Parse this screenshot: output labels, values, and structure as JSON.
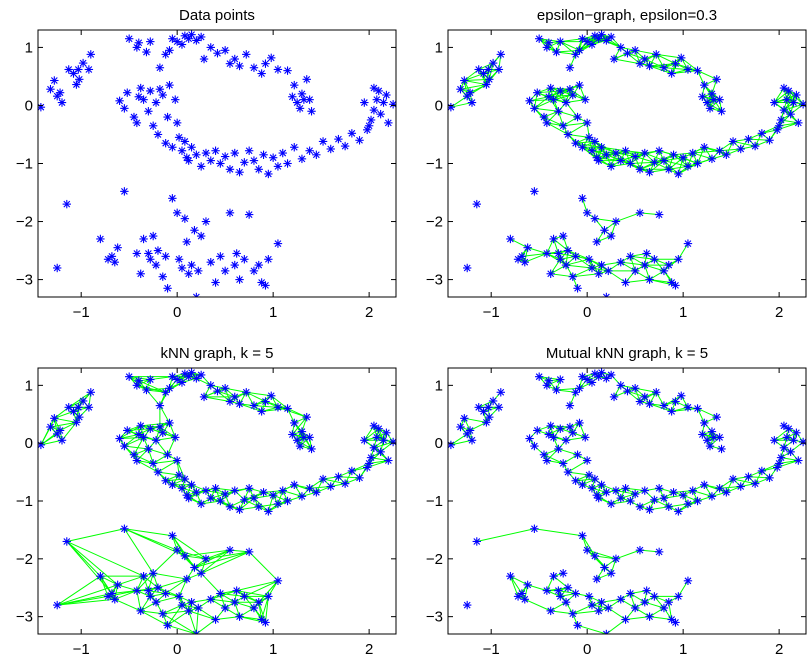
{
  "figure": {
    "background": "#ffffff",
    "point_color": "#0000ff",
    "edge_color": "#00ff00"
  },
  "chart_data": [
    {
      "type": "scatter",
      "title": "Data points",
      "xlim": [
        -1.45,
        2.28
      ],
      "ylim": [
        -3.3,
        1.3
      ],
      "xticks": [
        -1,
        0,
        1,
        2
      ],
      "yticks": [
        -3,
        -2,
        -1,
        0,
        1
      ],
      "marker": "asterisk",
      "grid": false,
      "edges": "none",
      "series": [
        {
          "points": []
        }
      ]
    },
    {
      "type": "scatter",
      "title": "epsilon−graph, epsilon=0.3",
      "xlim": [
        -1.45,
        2.28
      ],
      "ylim": [
        -3.3,
        1.3
      ],
      "xticks": [
        -1,
        0,
        1,
        2
      ],
      "yticks": [
        -3,
        -2,
        -1,
        0,
        1
      ],
      "marker": "asterisk",
      "grid": false,
      "edges": "epsilon",
      "epsilon": 0.3,
      "series": [
        {
          "points": []
        }
      ]
    },
    {
      "type": "scatter",
      "title": "kNN graph, k = 5",
      "xlim": [
        -1.45,
        2.28
      ],
      "ylim": [
        -3.3,
        1.3
      ],
      "xticks": [
        -1,
        0,
        1,
        2
      ],
      "yticks": [
        -3,
        -2,
        -1,
        0,
        1
      ],
      "marker": "asterisk",
      "grid": false,
      "edges": "knn",
      "k": 5,
      "series": [
        {
          "points": []
        }
      ]
    },
    {
      "type": "scatter",
      "title": "Mutual kNN graph, k = 5",
      "xlim": [
        -1.45,
        2.28
      ],
      "ylim": [
        -3.3,
        1.3
      ],
      "xticks": [
        -1,
        0,
        1,
        2
      ],
      "yticks": [
        -3,
        -2,
        -1,
        0,
        1
      ],
      "marker": "asterisk",
      "grid": false,
      "edges": "mutual-knn",
      "k": 5,
      "series": [
        {
          "points": []
        }
      ]
    }
  ],
  "dataset": [
    [
      -1.42,
      -0.03
    ],
    [
      -1.32,
      0.28
    ],
    [
      -1.28,
      0.43
    ],
    [
      -1.25,
      0.16
    ],
    [
      -1.22,
      0.22
    ],
    [
      -1.2,
      0.05
    ],
    [
      -1.13,
      0.62
    ],
    [
      -1.08,
      0.55
    ],
    [
      -1.05,
      0.36
    ],
    [
      -1.03,
      0.62
    ],
    [
      -1.02,
      0.45
    ],
    [
      -0.98,
      0.73
    ],
    [
      -0.92,
      0.62
    ],
    [
      -0.9,
      0.88
    ],
    [
      -0.5,
      1.15
    ],
    [
      -0.42,
      1.0
    ],
    [
      -0.4,
      1.08
    ],
    [
      -0.32,
      0.92
    ],
    [
      -0.28,
      1.1
    ],
    [
      -0.18,
      0.65
    ],
    [
      -0.12,
      0.88
    ],
    [
      -0.08,
      0.95
    ],
    [
      -0.05,
      1.15
    ],
    [
      0.0,
      1.1
    ],
    [
      0.05,
      1.05
    ],
    [
      0.08,
      1.2
    ],
    [
      0.12,
      1.15
    ],
    [
      0.15,
      1.22
    ],
    [
      0.2,
      1.12
    ],
    [
      0.25,
      1.18
    ],
    [
      0.28,
      0.8
    ],
    [
      0.35,
      1.0
    ],
    [
      0.42,
      0.9
    ],
    [
      0.5,
      0.95
    ],
    [
      0.55,
      0.72
    ],
    [
      0.6,
      0.8
    ],
    [
      0.65,
      0.68
    ],
    [
      0.72,
      0.88
    ],
    [
      0.8,
      0.65
    ],
    [
      0.88,
      0.55
    ],
    [
      0.92,
      0.72
    ],
    [
      0.98,
      0.82
    ],
    [
      1.05,
      0.62
    ],
    [
      1.15,
      0.6
    ],
    [
      1.2,
      0.15
    ],
    [
      1.22,
      0.35
    ],
    [
      1.25,
      0.05
    ],
    [
      1.3,
      0.2
    ],
    [
      1.28,
      -0.05
    ],
    [
      1.35,
      0.45
    ],
    [
      1.38,
      0.1
    ],
    [
      1.4,
      -0.1
    ],
    [
      1.32,
      0.1
    ],
    [
      -0.6,
      0.08
    ],
    [
      -0.55,
      -0.05
    ],
    [
      -0.52,
      0.22
    ],
    [
      -0.45,
      -0.2
    ],
    [
      -0.42,
      -0.3
    ],
    [
      -0.4,
      0.15
    ],
    [
      -0.38,
      0.3
    ],
    [
      -0.35,
      0.1
    ],
    [
      -0.3,
      -0.1
    ],
    [
      -0.28,
      0.25
    ],
    [
      -0.25,
      -0.35
    ],
    [
      -0.22,
      0.05
    ],
    [
      -0.2,
      -0.5
    ],
    [
      -0.18,
      0.28
    ],
    [
      -0.15,
      0.18
    ],
    [
      -0.12,
      -0.65
    ],
    [
      -0.1,
      -0.2
    ],
    [
      -0.08,
      0.35
    ],
    [
      -0.05,
      -0.72
    ],
    [
      -0.02,
      0.1
    ],
    [
      0.0,
      -0.3
    ],
    [
      0.02,
      -0.55
    ],
    [
      0.05,
      -0.78
    ],
    [
      0.08,
      -0.62
    ],
    [
      0.1,
      -0.9
    ],
    [
      0.12,
      -0.95
    ],
    [
      0.15,
      -0.72
    ],
    [
      0.2,
      -0.85
    ],
    [
      0.25,
      -1.05
    ],
    [
      0.3,
      -0.82
    ],
    [
      0.35,
      -0.95
    ],
    [
      0.4,
      -0.78
    ],
    [
      0.45,
      -1.0
    ],
    [
      0.5,
      -0.88
    ],
    [
      0.55,
      -1.1
    ],
    [
      0.6,
      -0.82
    ],
    [
      0.65,
      -1.15
    ],
    [
      0.7,
      -0.98
    ],
    [
      0.75,
      -0.78
    ],
    [
      0.8,
      -0.95
    ],
    [
      0.85,
      -1.1
    ],
    [
      0.9,
      -0.85
    ],
    [
      0.95,
      -1.18
    ],
    [
      1.0,
      -0.9
    ],
    [
      1.05,
      -1.05
    ],
    [
      1.1,
      -0.82
    ],
    [
      1.15,
      -1.0
    ],
    [
      1.22,
      -0.72
    ],
    [
      1.3,
      -0.92
    ],
    [
      1.38,
      -0.78
    ],
    [
      1.45,
      -0.85
    ],
    [
      1.52,
      -0.62
    ],
    [
      1.6,
      -0.75
    ],
    [
      1.68,
      -0.58
    ],
    [
      1.75,
      -0.7
    ],
    [
      1.82,
      -0.48
    ],
    [
      1.9,
      -0.6
    ],
    [
      1.98,
      -0.42
    ],
    [
      2.02,
      -0.25
    ],
    [
      2.05,
      -0.08
    ],
    [
      2.08,
      0.1
    ],
    [
      2.1,
      0.25
    ],
    [
      2.12,
      -0.15
    ],
    [
      2.15,
      0.05
    ],
    [
      2.18,
      0.18
    ],
    [
      2.2,
      -0.3
    ],
    [
      2.25,
      0.02
    ],
    [
      2.0,
      -0.35
    ],
    [
      1.95,
      0.05
    ],
    [
      2.05,
      0.3
    ],
    [
      -1.15,
      -1.7
    ],
    [
      -1.25,
      -2.8
    ],
    [
      -0.8,
      -2.3
    ],
    [
      -0.72,
      -2.65
    ],
    [
      -0.68,
      -2.6
    ],
    [
      -0.65,
      -2.7
    ],
    [
      -0.62,
      -2.45
    ],
    [
      -0.55,
      -1.48
    ],
    [
      -0.42,
      -2.55
    ],
    [
      -0.38,
      -2.9
    ],
    [
      -0.35,
      -2.3
    ],
    [
      -0.3,
      -2.55
    ],
    [
      -0.28,
      -2.65
    ],
    [
      -0.25,
      -2.25
    ],
    [
      -0.22,
      -2.75
    ],
    [
      -0.2,
      -2.5
    ],
    [
      -0.15,
      -2.95
    ],
    [
      -0.12,
      -2.6
    ],
    [
      -0.1,
      -3.15
    ],
    [
      -0.05,
      -1.6
    ],
    [
      0.0,
      -1.85
    ],
    [
      0.02,
      -2.65
    ],
    [
      0.05,
      -2.8
    ],
    [
      0.08,
      -1.95
    ],
    [
      0.1,
      -2.35
    ],
    [
      0.12,
      -2.9
    ],
    [
      0.15,
      -2.75
    ],
    [
      0.18,
      -2.15
    ],
    [
      0.2,
      -3.3
    ],
    [
      0.22,
      -2.85
    ],
    [
      0.25,
      -2.25
    ],
    [
      0.3,
      -2.0
    ],
    [
      0.35,
      -2.7
    ],
    [
      0.4,
      -3.05
    ],
    [
      0.45,
      -2.6
    ],
    [
      0.5,
      -2.85
    ],
    [
      0.55,
      -1.85
    ],
    [
      0.6,
      -2.75
    ],
    [
      0.62,
      -2.55
    ],
    [
      0.65,
      -3.0
    ],
    [
      0.7,
      -2.65
    ],
    [
      0.75,
      -1.88
    ],
    [
      0.8,
      -2.85
    ],
    [
      0.85,
      -2.75
    ],
    [
      0.88,
      -3.05
    ],
    [
      0.92,
      -3.1
    ],
    [
      0.95,
      -2.65
    ],
    [
      1.05,
      -2.38
    ]
  ]
}
